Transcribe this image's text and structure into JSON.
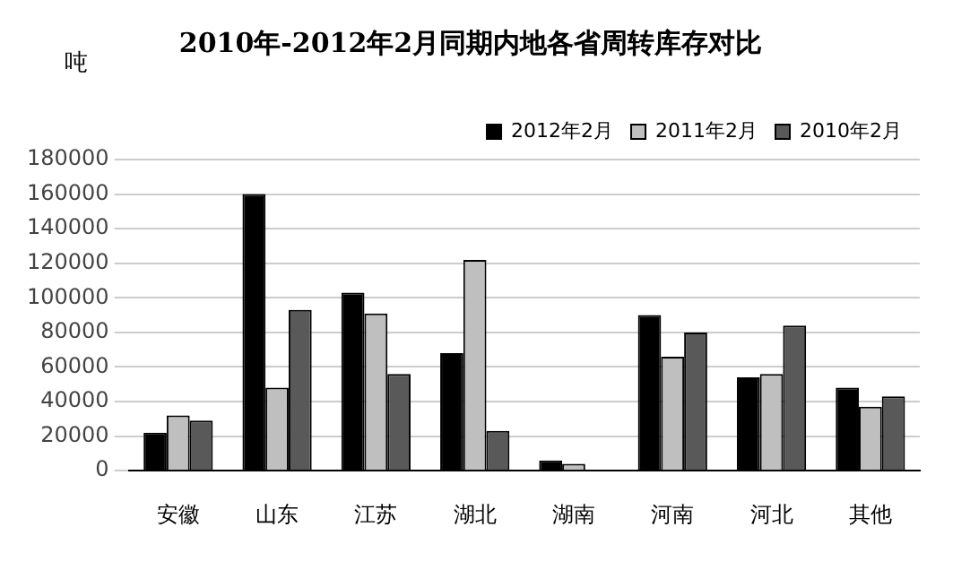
{
  "chart_data": {
    "type": "bar",
    "title": "2010年-2012年2月同期内地各省周转库存对比",
    "ylabel": "吨",
    "categories": [
      "安徽",
      "山东",
      "江苏",
      "湖北",
      "湖南",
      "河南",
      "河北",
      "其他"
    ],
    "series": [
      {
        "name": "2012年2月",
        "color": "#000000",
        "values": [
          22000,
          160000,
          103000,
          68000,
          6000,
          90000,
          54000,
          48000
        ]
      },
      {
        "name": "2011年2月",
        "color": "#bfbfbf",
        "values": [
          32000,
          48000,
          91000,
          122000,
          4000,
          66000,
          56000,
          37000
        ]
      },
      {
        "name": "2010年2月",
        "color": "#595959",
        "values": [
          29000,
          93000,
          56000,
          23000,
          null,
          80000,
          84000,
          43000
        ]
      }
    ],
    "ylim": [
      0,
      180000
    ],
    "yticks": [
      0,
      20000,
      40000,
      60000,
      80000,
      100000,
      120000,
      140000,
      160000,
      180000
    ],
    "grid": "y",
    "legend": "top right"
  }
}
